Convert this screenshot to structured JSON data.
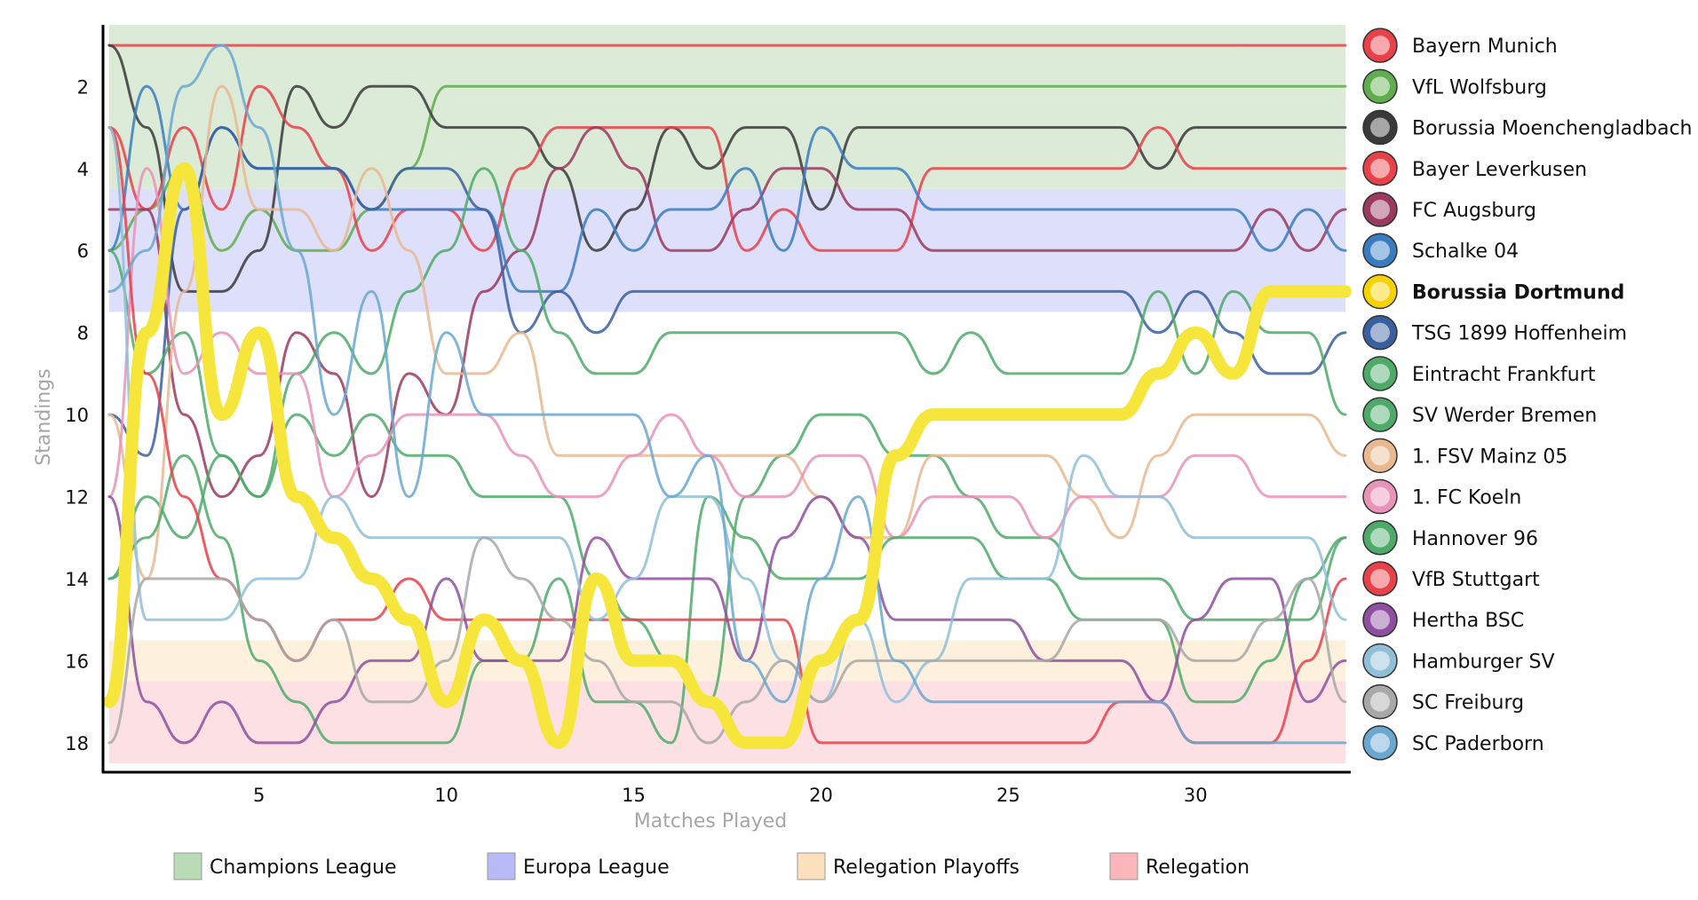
{
  "chart_data": {
    "type": "line",
    "xlabel": "Matches Played",
    "ylabel": "Standings",
    "xlim": [
      1,
      34
    ],
    "ylim": [
      18,
      1
    ],
    "x_ticks": [
      5,
      10,
      15,
      20,
      25,
      30
    ],
    "y_ticks": [
      2,
      4,
      6,
      8,
      10,
      12,
      14,
      16,
      18
    ],
    "grid": false,
    "legend_position": "right",
    "zones": [
      {
        "name": "Champions League",
        "from": 1,
        "to": 4,
        "color": "#dcebd8"
      },
      {
        "name": "Europa League",
        "from": 5,
        "to": 7,
        "color": "#dedffb"
      },
      {
        "name": "Relegation Playoffs",
        "from": 16,
        "to": 16,
        "color": "#fdf1dd"
      },
      {
        "name": "Relegation",
        "from": 17,
        "to": 18,
        "color": "#fde0e3"
      }
    ],
    "series": [
      {
        "name": "Bayern Munich",
        "color": "#e8414a",
        "highlight": false,
        "icon": "bayern-munich-logo",
        "values": [
          1,
          1,
          1,
          1,
          1,
          1,
          1,
          1,
          1,
          1,
          1,
          1,
          1,
          1,
          1,
          1,
          1,
          1,
          1,
          1,
          1,
          1,
          1,
          1,
          1,
          1,
          1,
          1,
          1,
          1,
          1,
          1,
          1,
          1
        ]
      },
      {
        "name": "VfL Wolfsburg",
        "color": "#5fad4e",
        "highlight": false,
        "icon": "vfl-wolfsburg-logo",
        "values": [
          6,
          5,
          4,
          6,
          5,
          6,
          6,
          5,
          4,
          2,
          2,
          2,
          2,
          2,
          2,
          2,
          2,
          2,
          2,
          2,
          2,
          2,
          2,
          2,
          2,
          2,
          2,
          2,
          2,
          2,
          2,
          2,
          2,
          2
        ]
      },
      {
        "name": "Borussia Moenchengladbach",
        "color": "#3a3a3a",
        "highlight": false,
        "icon": "borussia-moenchengladbach-logo",
        "values": [
          1,
          3,
          7,
          7,
          6,
          2,
          3,
          2,
          2,
          3,
          3,
          3,
          4,
          6,
          5,
          3,
          4,
          3,
          3,
          5,
          3,
          3,
          3,
          3,
          3,
          3,
          3,
          3,
          4,
          3,
          3,
          3,
          3,
          3
        ]
      },
      {
        "name": "Bayer Leverkusen",
        "color": "#e8414a",
        "highlight": false,
        "icon": "bayer-leverkusen-logo",
        "values": [
          3,
          5,
          3,
          5,
          2,
          3,
          4,
          6,
          5,
          5,
          6,
          4,
          3,
          3,
          3,
          3,
          3,
          6,
          5,
          6,
          6,
          6,
          4,
          4,
          4,
          4,
          4,
          4,
          3,
          4,
          4,
          4,
          4,
          4
        ]
      },
      {
        "name": "FC Augsburg",
        "color": "#9a3a5e",
        "highlight": false,
        "icon": "fc-augsburg-logo",
        "values": [
          5,
          5,
          10,
          12,
          11,
          8,
          9,
          12,
          9,
          10,
          7,
          6,
          4,
          3,
          4,
          6,
          6,
          5,
          4,
          4,
          5,
          5,
          6,
          6,
          6,
          6,
          6,
          6,
          6,
          6,
          6,
          5,
          6,
          5
        ]
      },
      {
        "name": "Schalke 04",
        "color": "#3a7cc0",
        "highlight": false,
        "icon": "schalke-04-logo",
        "values": [
          6,
          2,
          5,
          3,
          4,
          4,
          4,
          5,
          5,
          5,
          5,
          7,
          7,
          5,
          6,
          5,
          5,
          4,
          6,
          3,
          4,
          4,
          5,
          5,
          5,
          5,
          5,
          5,
          5,
          5,
          5,
          6,
          5,
          6
        ]
      },
      {
        "name": "Borussia Dortmund",
        "color": "#f6e53a",
        "highlight": true,
        "icon": "borussia-dortmund-logo",
        "values": [
          17,
          8,
          4,
          10,
          8,
          12,
          13,
          14,
          15,
          17,
          15,
          16,
          18,
          14,
          16,
          16,
          17,
          18,
          18,
          16,
          15,
          11,
          10,
          10,
          10,
          10,
          10,
          10,
          9,
          8,
          9,
          7,
          7,
          7
        ]
      },
      {
        "name": "TSG 1899 Hoffenheim",
        "color": "#3a5fa0",
        "highlight": false,
        "icon": "tsg-1899-hoffenheim-logo",
        "values": [
          10,
          11,
          5,
          3,
          4,
          4,
          4,
          5,
          4,
          4,
          5,
          8,
          7,
          8,
          7,
          7,
          7,
          7,
          7,
          7,
          7,
          7,
          7,
          7,
          7,
          7,
          7,
          7,
          8,
          7,
          8,
          9,
          9,
          8
        ]
      },
      {
        "name": "Eintracht Frankfurt",
        "color": "#4faa6a",
        "highlight": false,
        "icon": "eintracht-frankfurt-logo",
        "values": [
          6,
          9,
          8,
          11,
          12,
          9,
          8,
          9,
          7,
          6,
          4,
          6,
          8,
          9,
          9,
          8,
          8,
          8,
          8,
          8,
          8,
          8,
          9,
          8,
          9,
          9,
          9,
          9,
          7,
          9,
          7,
          8,
          8,
          10
        ]
      },
      {
        "name": "SV Werder Bremen",
        "color": "#4faa6a",
        "highlight": false,
        "icon": "sv-werder-bremen-logo",
        "values": [
          14,
          12,
          13,
          11,
          12,
          10,
          11,
          10,
          11,
          11,
          12,
          12,
          12,
          14,
          15,
          16,
          17,
          12,
          11,
          10,
          10,
          11,
          11,
          12,
          13,
          13,
          14,
          14,
          14,
          15,
          15,
          15,
          15,
          13
        ]
      },
      {
        "name": "1. FSV Mainz 05",
        "color": "#e8b890",
        "highlight": false,
        "icon": "fsv-mainz-05-logo",
        "values": [
          10,
          14,
          7,
          2,
          5,
          5,
          6,
          4,
          6,
          9,
          9,
          8,
          11,
          11,
          11,
          11,
          11,
          11,
          11,
          12,
          13,
          13,
          11,
          11,
          11,
          11,
          12,
          13,
          11,
          10,
          10,
          10,
          10,
          11
        ]
      },
      {
        "name": "1. FC Koeln",
        "color": "#e893b8",
        "highlight": false,
        "icon": "fc-koeln-logo",
        "values": [
          12,
          4,
          9,
          8,
          9,
          9,
          12,
          11,
          10,
          10,
          10,
          11,
          12,
          12,
          11,
          10,
          11,
          12,
          12,
          11,
          11,
          13,
          12,
          12,
          12,
          13,
          12,
          12,
          12,
          11,
          11,
          12,
          12,
          12
        ]
      },
      {
        "name": "Hannover 96",
        "color": "#4faa6a",
        "highlight": false,
        "icon": "hannover-96-logo",
        "values": [
          14,
          13,
          11,
          13,
          16,
          17,
          18,
          18,
          18,
          18,
          16,
          16,
          14,
          17,
          17,
          18,
          12,
          13,
          14,
          14,
          14,
          13,
          13,
          13,
          14,
          14,
          15,
          15,
          15,
          17,
          17,
          16,
          14,
          13
        ]
      },
      {
        "name": "VfB Stuttgart",
        "color": "#e8414a",
        "highlight": false,
        "icon": "vfb-stuttgart-logo",
        "values": [
          3,
          9,
          12,
          14,
          15,
          16,
          15,
          15,
          14,
          15,
          15,
          15,
          15,
          15,
          15,
          15,
          15,
          15,
          15,
          18,
          18,
          18,
          18,
          18,
          18,
          18,
          18,
          17,
          17,
          18,
          18,
          18,
          16,
          14
        ]
      },
      {
        "name": "Hertha BSC",
        "color": "#8f4fa0",
        "highlight": false,
        "icon": "hertha-bsc-logo",
        "values": [
          12,
          17,
          18,
          17,
          18,
          18,
          17,
          16,
          16,
          14,
          16,
          16,
          16,
          13,
          14,
          14,
          14,
          16,
          13,
          12,
          13,
          15,
          15,
          15,
          15,
          16,
          16,
          16,
          17,
          15,
          14,
          14,
          17,
          16
        ]
      },
      {
        "name": "Hamburger SV",
        "color": "#8fc0d8",
        "highlight": false,
        "icon": "hamburger-sv-logo",
        "values": [
          3,
          15,
          15,
          15,
          14,
          14,
          12,
          13,
          13,
          13,
          13,
          13,
          13,
          15,
          14,
          12,
          12,
          14,
          16,
          17,
          15,
          17,
          16,
          14,
          14,
          14,
          11,
          12,
          12,
          13,
          13,
          13,
          13,
          15
        ]
      },
      {
        "name": "SC Freiburg",
        "color": "#a8a8a8",
        "highlight": false,
        "icon": "sc-freiburg-logo",
        "values": [
          18,
          14,
          14,
          14,
          15,
          16,
          15,
          17,
          17,
          16,
          13,
          14,
          15,
          16,
          17,
          17,
          18,
          17,
          16,
          17,
          16,
          16,
          16,
          16,
          16,
          16,
          15,
          15,
          15,
          16,
          16,
          15,
          14,
          17
        ]
      },
      {
        "name": "SC Paderborn",
        "color": "#6aa8d0",
        "highlight": false,
        "icon": "sc-paderborn-logo",
        "values": [
          7,
          6,
          2,
          1,
          3,
          6,
          10,
          7,
          12,
          8,
          10,
          10,
          10,
          10,
          10,
          12,
          11,
          16,
          17,
          14,
          12,
          16,
          17,
          17,
          17,
          17,
          17,
          17,
          17,
          18,
          18,
          18,
          18,
          18
        ]
      }
    ]
  }
}
